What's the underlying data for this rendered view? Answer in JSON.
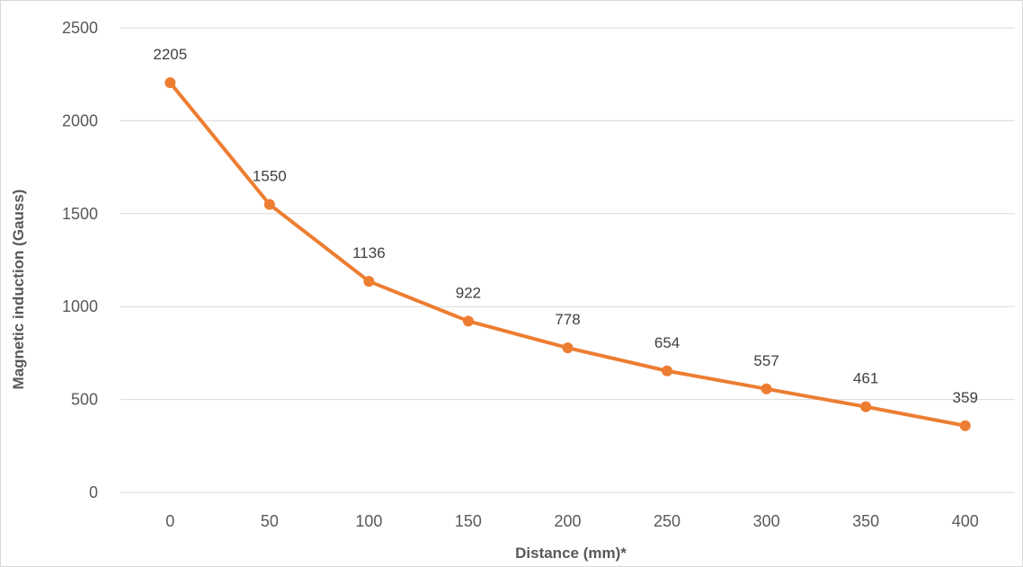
{
  "chart_data": {
    "type": "line",
    "title": "",
    "xlabel": "Distance (mm)*",
    "ylabel": "Magnetic induction (Gauss)",
    "categories": [
      "0",
      "50",
      "100",
      "150",
      "200",
      "250",
      "300",
      "350",
      "400"
    ],
    "series": [
      {
        "values": [
          2205,
          1550,
          1136,
          922,
          778,
          654,
          557,
          461,
          359
        ],
        "color": "#ed7d31"
      }
    ],
    "data_labels": [
      "2205",
      "1550",
      "1136",
      "922",
      "778",
      "654",
      "557",
      "461",
      "359"
    ],
    "ylim": [
      0,
      2500
    ],
    "yticks": [
      "0",
      "500",
      "1000",
      "1500",
      "2000",
      "2500"
    ],
    "grid": true,
    "legend": "none",
    "marker": "circle",
    "colors": {
      "gridline": "#d9d9d9",
      "tick_text": "#595959",
      "label_text": "#404040"
    }
  }
}
